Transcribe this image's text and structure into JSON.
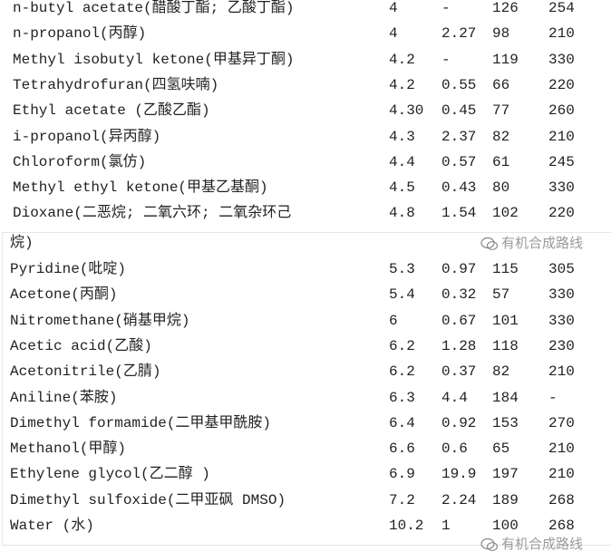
{
  "rows_top": [
    [
      "n-butyl acetate(醋酸丁酯; 乙酸丁酯)",
      "4",
      "-",
      "126",
      "254"
    ],
    [
      "n-propanol(丙醇)",
      "4",
      "2.27",
      "98",
      "210"
    ],
    [
      "Methyl isobutyl ketone(甲基异丁酮)",
      "4.2",
      "-",
      "119",
      "330"
    ],
    [
      "Tetrahydrofuran(四氢呋喃)",
      "4.2",
      "0.55",
      "66",
      "220"
    ],
    [
      "Ethyl acetate (乙酸乙酯)",
      "4.30",
      "0.45",
      "77",
      "260"
    ],
    [
      "i-propanol(异丙醇)",
      "4.3",
      "2.37",
      "82",
      "210"
    ],
    [
      "Chloroform(氯仿)",
      "4.4",
      "0.57",
      "61",
      "245"
    ],
    [
      "Methyl ethyl ketone(甲基乙基酮)",
      "4.5",
      "0.43",
      "80",
      "330"
    ],
    [
      "Dioxane(二恶烷; 二氧六环; 二氧杂环己",
      "4.8",
      "1.54",
      "102",
      "220"
    ]
  ],
  "continuation": "烷)",
  "rows_bottom": [
    [
      "Pyridine(吡啶)",
      "5.3",
      "0.97",
      "115",
      "305"
    ],
    [
      "Acetone(丙酮)",
      "5.4",
      "0.32",
      "57",
      "330"
    ],
    [
      "Nitromethane(硝基甲烷)",
      "6",
      "0.67",
      "101",
      "330"
    ],
    [
      "Acetic acid(乙酸)",
      "6.2",
      "1.28",
      "118",
      "230"
    ],
    [
      "Acetonitrile(乙腈)",
      "6.2",
      "0.37",
      "82",
      "210"
    ],
    [
      "Aniline(苯胺)",
      "6.3",
      "4.4",
      "184",
      "-"
    ],
    [
      "Dimethyl formamide(二甲基甲酰胺)",
      "6.4",
      "0.92",
      "153",
      "270"
    ],
    [
      "Methanol(甲醇)",
      "6.6",
      "0.6",
      "65",
      "210"
    ],
    [
      "Ethylene glycol(乙二醇 )",
      "6.9",
      "19.9",
      "197",
      "210"
    ],
    [
      "Dimethyl sulfoxide(二甲亚砜 DMSO)",
      "7.2",
      "2.24",
      "189",
      "268"
    ],
    [
      "Water (水)",
      "10.2",
      "1",
      "100",
      "268"
    ]
  ],
  "watermark": "有机合成路线",
  "watermark_icon": "wechat-icon"
}
